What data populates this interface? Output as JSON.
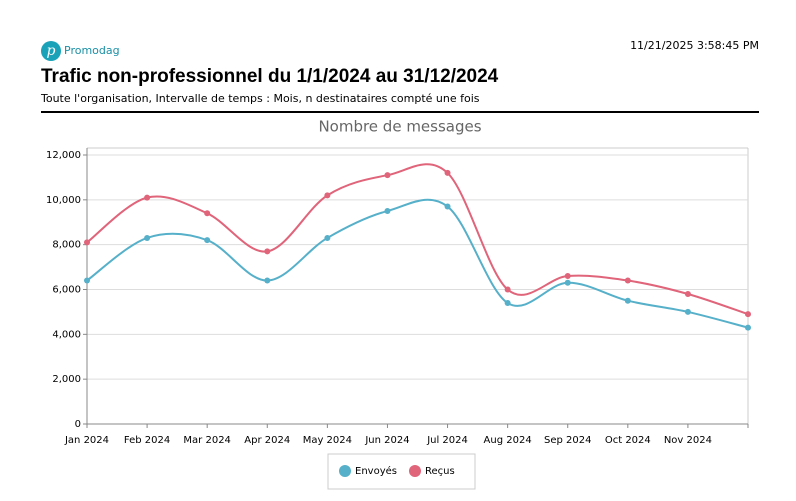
{
  "header": {
    "logo": "Promodag",
    "timestamp": "11/21/2025 3:58:45 PM",
    "title": "Trafic non-professionnel du 1/1/2024 au 31/12/2024",
    "subtitle": "Toute l'organisation, Intervalle de temps : Mois, n destinataires compté une fois"
  },
  "chart_data": {
    "type": "line",
    "title": "Nombre de messages",
    "categories": [
      "Jan 2024",
      "Feb 2024",
      "Mar 2024",
      "Apr 2024",
      "May 2024",
      "Jun 2024",
      "Jul 2024",
      "Aug 2024",
      "Sep 2024",
      "Oct 2024",
      "Nov 2024",
      null
    ],
    "series": [
      {
        "name": "Envoyés",
        "color": "#56b0c9",
        "values": [
          6400,
          8300,
          8200,
          6400,
          8300,
          9500,
          9700,
          5400,
          6300,
          5500,
          5000,
          4300
        ]
      },
      {
        "name": "Reçus",
        "color": "#e0647a",
        "values": [
          8100,
          10100,
          9400,
          7700,
          10200,
          11100,
          11200,
          6000,
          6600,
          6400,
          5800,
          4900
        ]
      }
    ],
    "ylim": [
      0,
      12000
    ],
    "yticks": [
      0,
      {
        "value": 2000,
        "label": "2,000"
      },
      {
        "value": 4000,
        "label": "4,000"
      },
      {
        "value": 6000,
        "label": "6,000"
      },
      {
        "value": 8000,
        "label": "8,000"
      },
      {
        "value": 10000,
        "label": "10,000"
      },
      {
        "value": 12000,
        "label": "12,000"
      }
    ],
    "grid": true,
    "smooth": true,
    "legend": "bottom"
  }
}
